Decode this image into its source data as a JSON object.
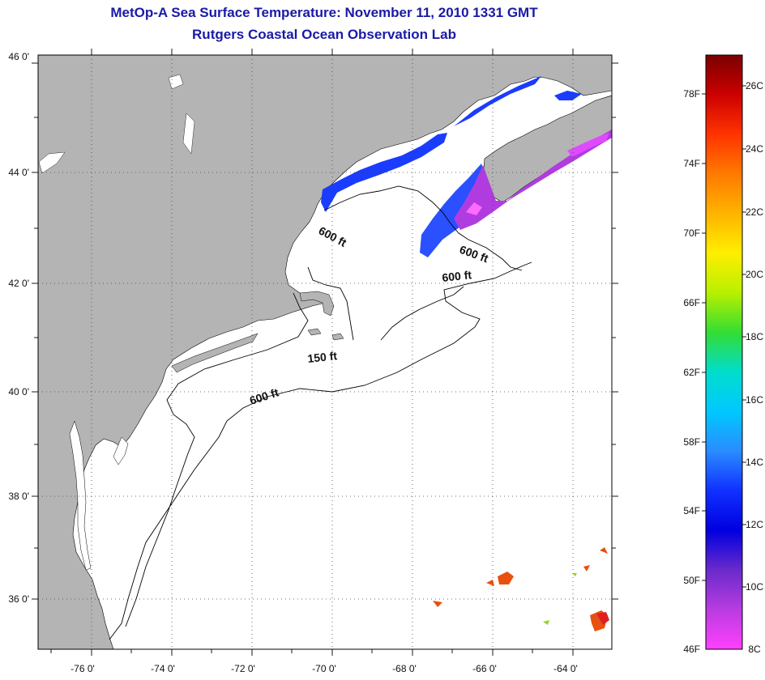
{
  "title": {
    "line1": "MetOp-A Sea Surface Temperature:  November 11, 2010 1331 GMT",
    "line2": "Rutgers Coastal Ocean Observation Lab"
  },
  "colors": {
    "land": "#b4b4b4",
    "sea": "#ffffff",
    "title": "#1a1aa6"
  },
  "axes": {
    "lon_labels": [
      "-76 0'",
      "-74 0'",
      "-72 0'",
      "-70 0'",
      "-68 0'",
      "-66 0'",
      "-64 0'"
    ],
    "lat_labels": [
      "46 0'",
      "44 0'",
      "42 0'",
      "40 0'",
      "38 0'",
      "36 0'"
    ]
  },
  "contours": [
    {
      "label": "600 ft",
      "id": "gom-west"
    },
    {
      "label": "600 ft",
      "id": "scotian"
    },
    {
      "label": "600 ft",
      "id": "georges"
    },
    {
      "label": "150 ft",
      "id": "nantucket"
    },
    {
      "label": "600 ft",
      "id": "shelf-break"
    }
  ],
  "colorbar": {
    "fahrenheit": [
      "78F",
      "74F",
      "70F",
      "66F",
      "62F",
      "58F",
      "54F",
      "50F",
      "46F"
    ],
    "celsius": [
      "26C",
      "24C",
      "22C",
      "20C",
      "18C",
      "16C",
      "14C",
      "12C",
      "10C",
      "8C"
    ],
    "stops": [
      "#7a0000",
      "#cc0000",
      "#ff3300",
      "#ff7a00",
      "#ffb300",
      "#ffee00",
      "#b8f000",
      "#33dd33",
      "#00ddcc",
      "#00c8ff",
      "#2a8cff",
      "#1030ff",
      "#0000e0",
      "#6a2acc",
      "#b83ce0",
      "#ff40ff"
    ]
  }
}
